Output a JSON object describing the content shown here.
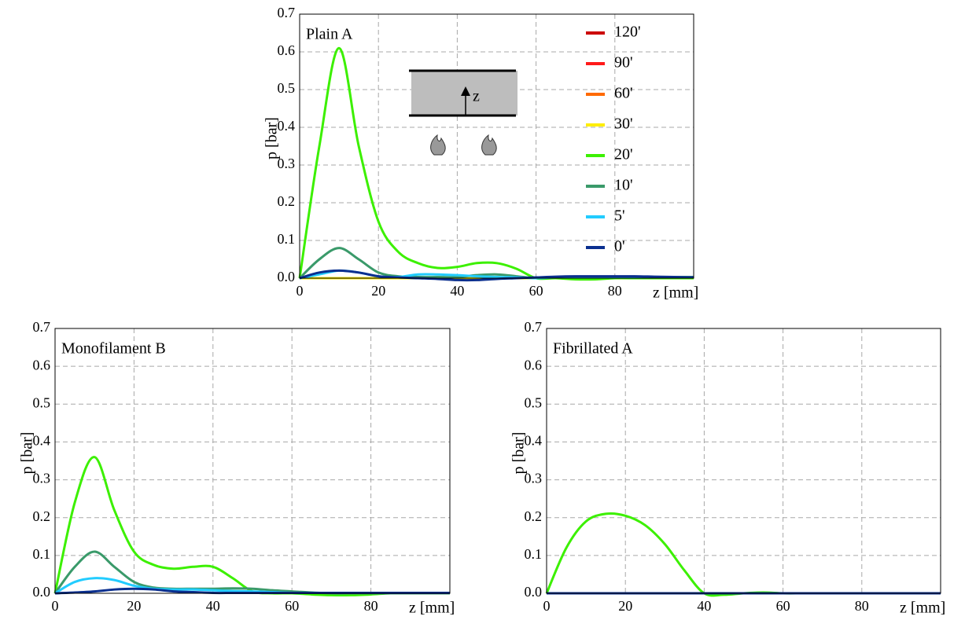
{
  "chart_data": [
    {
      "type": "line",
      "title": "Plain A",
      "xlabel": "z [mm]",
      "ylabel": "p [bar]",
      "inset_label": "z",
      "x": [
        0,
        5,
        10,
        15,
        20,
        25,
        30,
        35,
        40,
        45,
        50,
        55,
        60,
        65,
        70,
        75,
        80,
        85,
        90,
        95,
        100
      ],
      "xlim": [
        0,
        100
      ],
      "xticks": [
        0,
        20,
        40,
        60,
        80
      ],
      "ylim": [
        0,
        0.7
      ],
      "yticks": [
        {
          "value": 0,
          "label": "0.0"
        },
        0.1,
        0.2,
        0.3,
        0.4,
        0.5,
        0.6,
        0.7
      ],
      "grid": true,
      "legend": "upper right",
      "series": [
        {
          "name": "120'",
          "color": "#cc0000",
          "values": [
            0,
            0,
            0,
            0,
            0,
            0,
            0,
            0,
            0,
            0,
            0,
            0,
            0,
            0,
            0,
            0,
            0,
            0,
            0,
            0,
            0
          ]
        },
        {
          "name": "90'",
          "color": "#ff1a1a",
          "values": [
            0,
            0,
            0,
            0,
            0,
            0,
            0,
            0,
            0,
            0,
            0,
            0,
            0,
            0,
            0,
            0,
            0,
            0,
            0,
            0,
            0
          ]
        },
        {
          "name": "60'",
          "color": "#ff6a00",
          "values": [
            0,
            0,
            0,
            0,
            0,
            0,
            0,
            0,
            0,
            0,
            0,
            0,
            0,
            0,
            0,
            0,
            0,
            0,
            0,
            0,
            0
          ]
        },
        {
          "name": "30'",
          "color": "#ffee00",
          "values": [
            0,
            0,
            0,
            0,
            0,
            0,
            0,
            0,
            0,
            0,
            0,
            0,
            0,
            0,
            0,
            0,
            0,
            0,
            0,
            0,
            0
          ]
        },
        {
          "name": "20'",
          "color": "#3cf000",
          "values": [
            0,
            0.35,
            0.61,
            0.35,
            0.15,
            0.07,
            0.04,
            0.027,
            0.03,
            0.04,
            0.04,
            0.025,
            0,
            0,
            -0.003,
            -0.003,
            0,
            0,
            0,
            0,
            0
          ]
        },
        {
          "name": "10'",
          "color": "#3a9a6a",
          "values": [
            0,
            0.05,
            0.08,
            0.05,
            0.015,
            0.005,
            0.003,
            0.003,
            0.003,
            0.008,
            0.01,
            0.005,
            0,
            0.003,
            0.003,
            0.003,
            0.003,
            0.003,
            0.003,
            0.003,
            0.003
          ]
        },
        {
          "name": "5'",
          "color": "#22ccff",
          "values": [
            0,
            0.01,
            0.02,
            0.015,
            0.005,
            0.003,
            0.01,
            0.01,
            0.008,
            0.005,
            0.003,
            0.002,
            0,
            0.002,
            0.002,
            0.002,
            0.002,
            0.002,
            0.002,
            0.002,
            0.002
          ]
        },
        {
          "name": "0'",
          "color": "#0a2f8f",
          "values": [
            0,
            0.015,
            0.02,
            0.015,
            0.005,
            0.002,
            0,
            -0.002,
            -0.005,
            -0.005,
            -0.002,
            0,
            0.002,
            0.004,
            0.005,
            0.005,
            0.005,
            0.005,
            0.004,
            0.003,
            0.002
          ]
        }
      ]
    },
    {
      "type": "line",
      "title": "Monofilament B",
      "xlabel": "z [mm]",
      "ylabel": "p [bar]",
      "x": [
        0,
        5,
        10,
        15,
        20,
        25,
        30,
        35,
        40,
        45,
        50,
        55,
        60,
        65,
        70,
        75,
        80,
        85,
        90,
        95,
        100
      ],
      "xlim": [
        0,
        100
      ],
      "xticks": [
        0,
        20,
        40,
        60,
        80
      ],
      "ylim": [
        0,
        0.7
      ],
      "yticks": [
        {
          "value": 0,
          "label": "0.0"
        },
        0.1,
        0.2,
        0.3,
        0.4,
        0.5,
        0.6,
        0.7
      ],
      "grid": true,
      "series": [
        {
          "color": "#3cf000",
          "values": [
            0,
            0.24,
            0.36,
            0.22,
            0.11,
            0.075,
            0.065,
            0.07,
            0.07,
            0.04,
            0.005,
            0,
            0,
            -0.003,
            -0.005,
            -0.005,
            -0.003,
            0,
            0,
            0,
            0
          ]
        },
        {
          "color": "#3a9a6a",
          "values": [
            0,
            0.07,
            0.11,
            0.07,
            0.03,
            0.015,
            0.012,
            0.012,
            0.012,
            0.013,
            0.012,
            0.008,
            0.005,
            0.002,
            0,
            0,
            0,
            0,
            0,
            0,
            0
          ]
        },
        {
          "color": "#22ccff",
          "values": [
            0,
            0.03,
            0.04,
            0.035,
            0.02,
            0.012,
            0.01,
            0.01,
            0.008,
            0.006,
            0.005,
            0.003,
            0.001,
            0.001,
            0.001,
            0.001,
            0.001,
            0.001,
            0.001,
            0.001,
            0.001
          ]
        },
        {
          "color": "#0a2f8f",
          "values": [
            0,
            0.002,
            0.005,
            0.01,
            0.012,
            0.01,
            0.005,
            0.003,
            0.001,
            0.001,
            0.001,
            0.001,
            0.001,
            0.001,
            0.001,
            0.001,
            0.001,
            0.001,
            0.001,
            0.001,
            0.001
          ]
        }
      ]
    },
    {
      "type": "line",
      "title": "Fibrillated A",
      "xlabel": "z [mm]",
      "ylabel": "p [bar]",
      "x": [
        0,
        5,
        10,
        15,
        20,
        25,
        30,
        35,
        40,
        45,
        50,
        55,
        60,
        65,
        70,
        75,
        80,
        85,
        90,
        95,
        100
      ],
      "xlim": [
        0,
        100
      ],
      "xticks": [
        0,
        20,
        40,
        60,
        80
      ],
      "ylim": [
        0,
        0.7
      ],
      "yticks": [
        {
          "value": 0,
          "label": "0.0"
        },
        0.1,
        0.2,
        0.3,
        0.4,
        0.5,
        0.6,
        0.7
      ],
      "grid": true,
      "series": [
        {
          "color": "#3cf000",
          "values": [
            0,
            0.12,
            0.19,
            0.21,
            0.205,
            0.18,
            0.13,
            0.06,
            0,
            -0.004,
            0,
            0.002,
            0,
            0,
            0,
            0,
            0,
            0,
            0,
            0,
            0
          ]
        },
        {
          "color": "#0a2f8f",
          "values": [
            0,
            0,
            0,
            0,
            0,
            0,
            0,
            0,
            0,
            0,
            0,
            0,
            0,
            0,
            0,
            0,
            0,
            0,
            0,
            0,
            0
          ]
        }
      ]
    }
  ]
}
